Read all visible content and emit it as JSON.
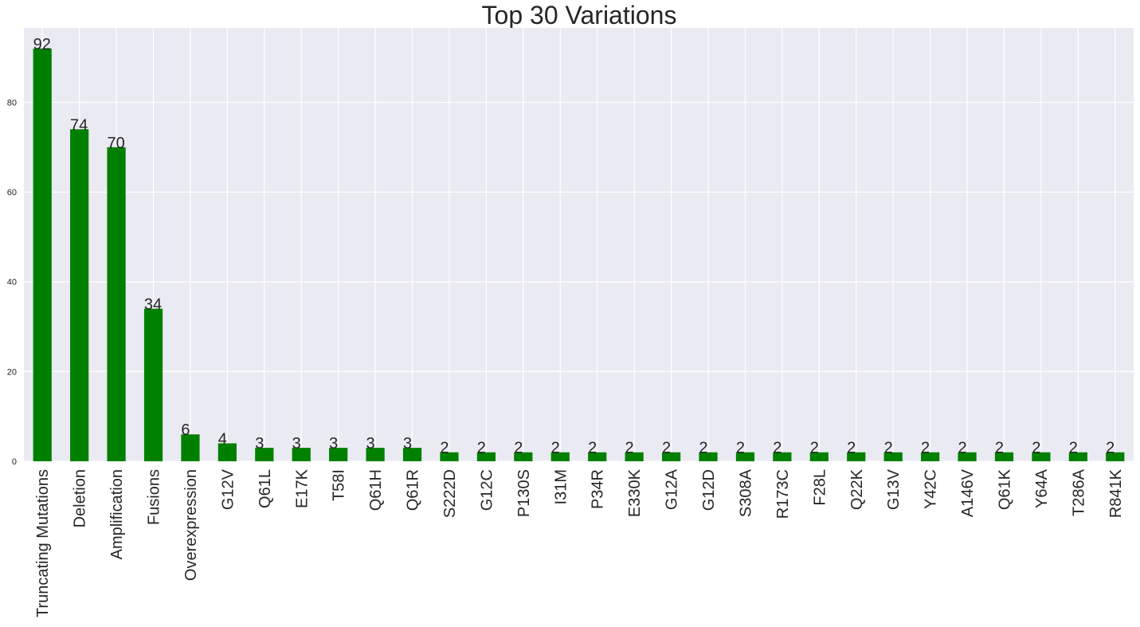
{
  "chart_data": {
    "type": "bar",
    "title": "Top 30 Variations",
    "xlabel": "",
    "ylabel": "",
    "categories": [
      "Truncating Mutations",
      "Deletion",
      "Amplification",
      "Fusions",
      "Overexpression",
      "G12V",
      "Q61L",
      "E17K",
      "T58I",
      "Q61H",
      "Q61R",
      "S222D",
      "G12C",
      "P130S",
      "I31M",
      "P34R",
      "E330K",
      "G12A",
      "G12D",
      "S308A",
      "R173C",
      "F28L",
      "Q22K",
      "G13V",
      "Y42C",
      "A146V",
      "Q61K",
      "Y64A",
      "T286A",
      "R841K"
    ],
    "values": [
      92,
      74,
      70,
      34,
      6,
      4,
      3,
      3,
      3,
      3,
      3,
      2,
      2,
      2,
      2,
      2,
      2,
      2,
      2,
      2,
      2,
      2,
      2,
      2,
      2,
      2,
      2,
      2,
      2,
      2
    ],
    "data_labels": [
      "92",
      "74",
      "70",
      "34",
      "6",
      "4",
      "3",
      "3",
      "3",
      "3",
      "3",
      "2",
      "2",
      "2",
      "2",
      "2",
      "2",
      "2",
      "2",
      "2",
      "2",
      "2",
      "2",
      "2",
      "2",
      "2",
      "2",
      "2",
      "2",
      "2"
    ],
    "ylim": [
      0,
      96.6
    ],
    "yticks": [
      0,
      20,
      40,
      60,
      80
    ],
    "ytick_labels": [
      "0",
      "20",
      "40",
      "60",
      "80"
    ],
    "grid": true,
    "legend": "none",
    "colors": {
      "bar": "#008000",
      "plot_background": "#eaeaf2",
      "grid": "#ffffff",
      "text": "#262626"
    }
  }
}
